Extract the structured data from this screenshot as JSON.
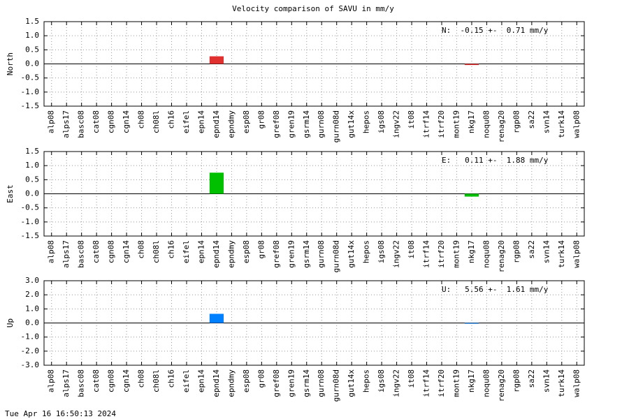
{
  "title": "Velocity comparison of SAVU in mm/y",
  "timestamp": "Tue Apr 16 16:50:13 2024",
  "chart_data": [
    {
      "type": "bar",
      "ylabel": "North",
      "annotation": "N:  -0.15 +-  0.71 mm/y",
      "color": "#e03030",
      "grid": true,
      "categories": [
        "alp08",
        "alps17",
        "basc08",
        "cat08",
        "cgn08",
        "cgn14",
        "ch08",
        "ch08l",
        "ch16",
        "eifel",
        "epn14",
        "epnd14",
        "epndmy",
        "esp08",
        "gr08",
        "gref08",
        "gren19",
        "gsrm14",
        "gurn08",
        "gurn08d",
        "gut14x",
        "hepos",
        "igs08",
        "ingv22",
        "it08",
        "itrf14",
        "itrf20",
        "mont19",
        "nkg17",
        "noqu08",
        "renag20",
        "rgp08",
        "sa22",
        "svn14",
        "turk14",
        "walp08"
      ],
      "values": [
        null,
        null,
        null,
        null,
        null,
        null,
        null,
        null,
        null,
        null,
        null,
        0.27,
        null,
        null,
        null,
        null,
        null,
        null,
        null,
        null,
        null,
        null,
        null,
        null,
        null,
        null,
        null,
        null,
        -0.04,
        null,
        null,
        null,
        null,
        null,
        null,
        null
      ],
      "ylim": [
        -1.5,
        1.5
      ],
      "yticks": [
        -1.5,
        {
          "value": -1.0,
          "label": "-1.0"
        },
        -0.5,
        {
          "value": 0,
          "label": "0.0"
        },
        0.5,
        {
          "value": 1.0,
          "label": "1.0"
        },
        1.5
      ]
    },
    {
      "type": "bar",
      "ylabel": "East",
      "annotation": "E:   0.11 +-  1.88 mm/y",
      "color": "#00c000",
      "grid": true,
      "categories": [
        "alp08",
        "alps17",
        "basc08",
        "cat08",
        "cgn08",
        "cgn14",
        "ch08",
        "ch08l",
        "ch16",
        "eifel",
        "epn14",
        "epnd14",
        "epndmy",
        "esp08",
        "gr08",
        "gref08",
        "gren19",
        "gsrm14",
        "gurn08",
        "gurn08d",
        "gut14x",
        "hepos",
        "igs08",
        "ingv22",
        "it08",
        "itrf14",
        "itrf20",
        "mont19",
        "nkg17",
        "noqu08",
        "renag20",
        "rgp08",
        "sa22",
        "svn14",
        "turk14",
        "walp08"
      ],
      "values": [
        null,
        null,
        null,
        null,
        null,
        null,
        null,
        null,
        null,
        null,
        null,
        0.75,
        null,
        null,
        null,
        null,
        null,
        null,
        null,
        null,
        null,
        null,
        null,
        null,
        null,
        null,
        null,
        null,
        -0.1,
        null,
        null,
        null,
        null,
        null,
        null,
        null
      ],
      "ylim": [
        -1.5,
        1.5
      ],
      "yticks": [
        -1.5,
        {
          "value": -1.0,
          "label": "-1.0"
        },
        -0.5,
        {
          "value": 0,
          "label": "0.0"
        },
        0.5,
        {
          "value": 1.0,
          "label": "1.0"
        },
        1.5
      ]
    },
    {
      "type": "bar",
      "ylabel": "Up",
      "annotation": "U:   5.56 +-  1.61 mm/y",
      "color": "#0080ff",
      "grid": true,
      "categories": [
        "alp08",
        "alps17",
        "basc08",
        "cat08",
        "cgn08",
        "cgn14",
        "ch08",
        "ch08l",
        "ch16",
        "eifel",
        "epn14",
        "epnd14",
        "epndmy",
        "esp08",
        "gr08",
        "gref08",
        "gren19",
        "gsrm14",
        "gurn08",
        "gurn08d",
        "gut14x",
        "hepos",
        "igs08",
        "ingv22",
        "it08",
        "itrf14",
        "itrf20",
        "mont19",
        "nkg17",
        "noqu08",
        "renag20",
        "rgp08",
        "sa22",
        "svn14",
        "turk14",
        "walp08"
      ],
      "values": [
        null,
        null,
        null,
        null,
        null,
        null,
        null,
        null,
        null,
        null,
        null,
        0.65,
        null,
        null,
        null,
        null,
        null,
        null,
        null,
        null,
        null,
        null,
        null,
        null,
        null,
        null,
        null,
        null,
        -0.05,
        null,
        null,
        null,
        null,
        null,
        null,
        null
      ],
      "ylim": [
        -3,
        3
      ],
      "yticks": [
        {
          "value": -3,
          "label": "-3.0"
        },
        {
          "value": -2,
          "label": "-2.0"
        },
        {
          "value": -1,
          "label": "-1.0"
        },
        {
          "value": 0,
          "label": "0.0"
        },
        {
          "value": 1,
          "label": "1.0"
        },
        {
          "value": 2,
          "label": "2.0"
        },
        {
          "value": 3,
          "label": "3.0"
        }
      ]
    }
  ]
}
